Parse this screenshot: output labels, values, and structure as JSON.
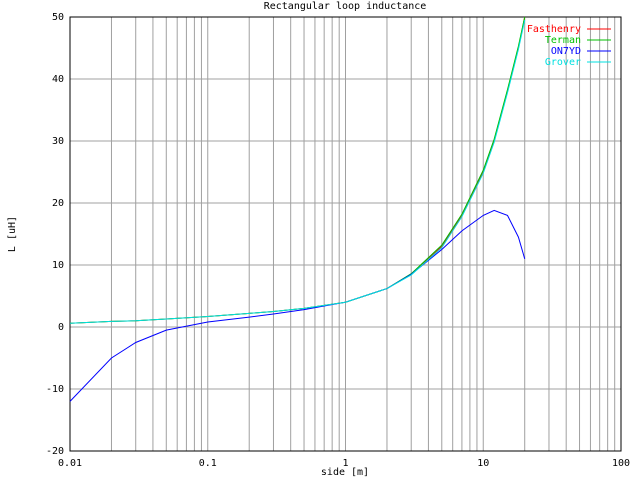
{
  "chart_data": {
    "type": "line",
    "title": "Rectangular loop inductance",
    "x_label": "side [m]",
    "y_label": "L [uH]",
    "x_log": true,
    "grid": true,
    "legend_position": "top-right",
    "xlim": [
      0.01,
      100
    ],
    "xticks": [
      0.01,
      0.1,
      1,
      10,
      100
    ],
    "xminor": [
      0.02,
      0.03,
      0.04,
      0.05,
      0.06,
      0.07,
      0.08,
      0.09,
      0.2,
      0.3,
      0.4,
      0.5,
      0.6,
      0.7,
      0.8,
      0.9,
      2,
      3,
      4,
      5,
      6,
      7,
      8,
      9,
      20,
      30,
      40,
      50,
      60,
      70,
      80,
      90
    ],
    "ylim": [
      -20,
      50
    ],
    "yticks": [
      -20,
      -10,
      0,
      10,
      20,
      30,
      40,
      50
    ],
    "x": [
      0.01,
      0.02,
      0.03,
      0.05,
      0.1,
      0.2,
      0.3,
      0.5,
      1,
      2,
      3,
      5,
      7,
      10,
      12,
      15,
      18,
      20
    ],
    "series": [
      {
        "name": "Fasthenry",
        "color": "#ff0000",
        "values": [
          0.6,
          0.9,
          1.0,
          1.3,
          1.7,
          2.2,
          2.5,
          3.0,
          4.0,
          6.2,
          8.5,
          13,
          18,
          25,
          30,
          38,
          45,
          50
        ]
      },
      {
        "name": "Terman",
        "color": "#00c000",
        "values": [
          0.6,
          0.9,
          1.0,
          1.3,
          1.7,
          2.2,
          2.5,
          3.0,
          4.0,
          6.2,
          8.6,
          13.2,
          18.2,
          25.3,
          30.3,
          38.3,
          45.3,
          50
        ]
      },
      {
        "name": "ON7YD",
        "color": "#0000ff",
        "values": [
          -12,
          -5,
          -2.5,
          -0.5,
          0.8,
          1.6,
          2.1,
          2.8,
          4.0,
          6.2,
          8.5,
          12.5,
          15.5,
          18,
          18.8,
          18,
          14.5,
          11
        ]
      },
      {
        "name": "Grover",
        "color": "#00e0e0",
        "values": [
          0.6,
          0.9,
          1.0,
          1.3,
          1.7,
          2.2,
          2.5,
          3.0,
          4.0,
          6.2,
          8.4,
          12.8,
          17.8,
          24.8,
          29.8,
          37.8,
          44.8,
          49.5
        ]
      }
    ]
  }
}
